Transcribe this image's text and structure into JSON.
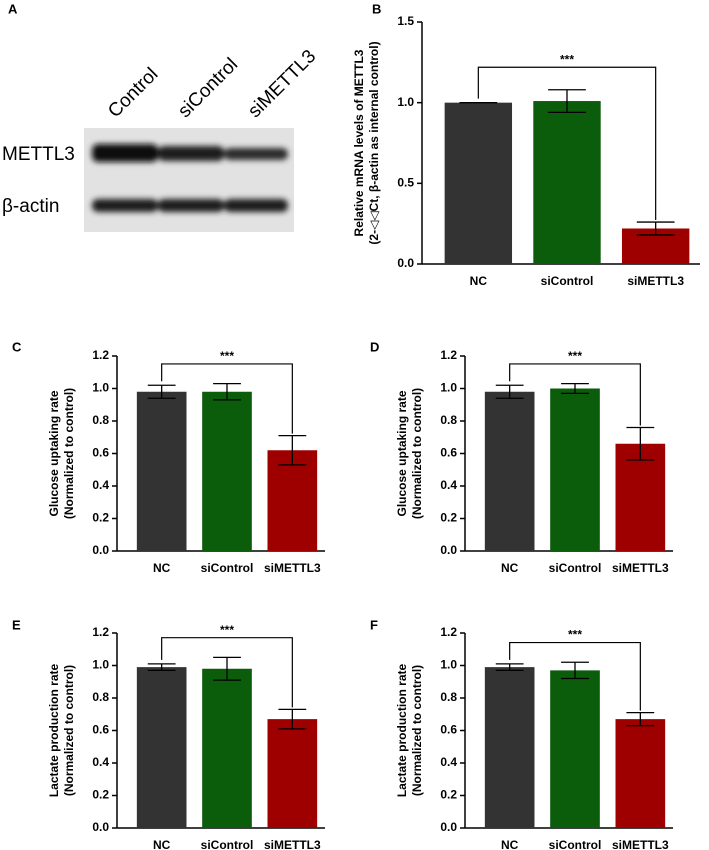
{
  "blot": {
    "panel": "A",
    "lanes": [
      "Control",
      "siControl",
      "siMETTL3"
    ],
    "rows": [
      "METTL3",
      "β-actin"
    ]
  },
  "chart_data": [
    {
      "type": "bar",
      "panel": "B",
      "ylabel": [
        "Relative mRNA levels of METTL3",
        "(2-◁◁Ct, β-actin as internal control)"
      ],
      "categories": [
        "NC",
        "siControl",
        "siMETTL3"
      ],
      "values": [
        1.0,
        1.01,
        0.22
      ],
      "errors": [
        0.0,
        0.07,
        0.04
      ],
      "colors": [
        "#333333",
        "#0b5c0b",
        "#9e0000"
      ],
      "ylim": [
        0,
        1.5
      ],
      "yticks": [
        {
          "value": 0,
          "label": "0.0"
        },
        0.5,
        {
          "value": 1,
          "label": "1.0"
        },
        1.5
      ],
      "annotation": "***"
    },
    {
      "type": "bar",
      "panel": "C",
      "ylabel": [
        "Glucose uptaking rate",
        "(Normalized to control)"
      ],
      "categories": [
        "NC",
        "siControl",
        "siMETTL3"
      ],
      "values": [
        0.98,
        0.98,
        0.62
      ],
      "errors": [
        0.04,
        0.05,
        0.09
      ],
      "colors": [
        "#333333",
        "#0b5c0b",
        "#9e0000"
      ],
      "ylim": [
        0,
        1.2
      ],
      "yticks": [
        {
          "value": 0,
          "label": "0.0"
        },
        0.2,
        0.4,
        0.6,
        0.8,
        {
          "value": 1,
          "label": "1.0"
        },
        1.2
      ],
      "annotation": "***"
    },
    {
      "type": "bar",
      "panel": "D",
      "ylabel": [
        "Glucose uptaking rate",
        "(Normalized to control)"
      ],
      "categories": [
        "NC",
        "siControl",
        "siMETTL3"
      ],
      "values": [
        0.98,
        1.0,
        0.66
      ],
      "errors": [
        0.04,
        0.03,
        0.1
      ],
      "colors": [
        "#333333",
        "#0b5c0b",
        "#9e0000"
      ],
      "ylim": [
        0,
        1.2
      ],
      "yticks": [
        {
          "value": 0,
          "label": "0.0"
        },
        0.2,
        0.4,
        0.6,
        0.8,
        {
          "value": 1,
          "label": "1.0"
        },
        1.2
      ],
      "annotation": "***"
    },
    {
      "type": "bar",
      "panel": "E",
      "ylabel": [
        "Lactate production rate",
        "(Normalized to control)"
      ],
      "categories": [
        "NC",
        "siControl",
        "siMETTL3"
      ],
      "values": [
        0.99,
        0.98,
        0.67
      ],
      "errors": [
        0.02,
        0.07,
        0.06
      ],
      "colors": [
        "#333333",
        "#0b5c0b",
        "#9e0000"
      ],
      "ylim": [
        0,
        1.2
      ],
      "yticks": [
        {
          "value": 0,
          "label": "0.0"
        },
        0.2,
        0.4,
        0.6,
        0.8,
        {
          "value": 1,
          "label": "1.0"
        },
        1.2
      ],
      "annotation": "***"
    },
    {
      "type": "bar",
      "panel": "F",
      "ylabel": [
        "Lactate production rate",
        "(Normalized to control)"
      ],
      "categories": [
        "NC",
        "siControl",
        "siMETTL3"
      ],
      "values": [
        0.99,
        0.97,
        0.67
      ],
      "errors": [
        0.02,
        0.05,
        0.04
      ],
      "colors": [
        "#333333",
        "#0b5c0b",
        "#9e0000"
      ],
      "ylim": [
        0,
        1.2
      ],
      "yticks": [
        {
          "value": 0,
          "label": "0.0"
        },
        0.2,
        0.4,
        0.6,
        0.8,
        {
          "value": 1,
          "label": "1.0"
        },
        1.2
      ],
      "annotation": "***"
    }
  ]
}
